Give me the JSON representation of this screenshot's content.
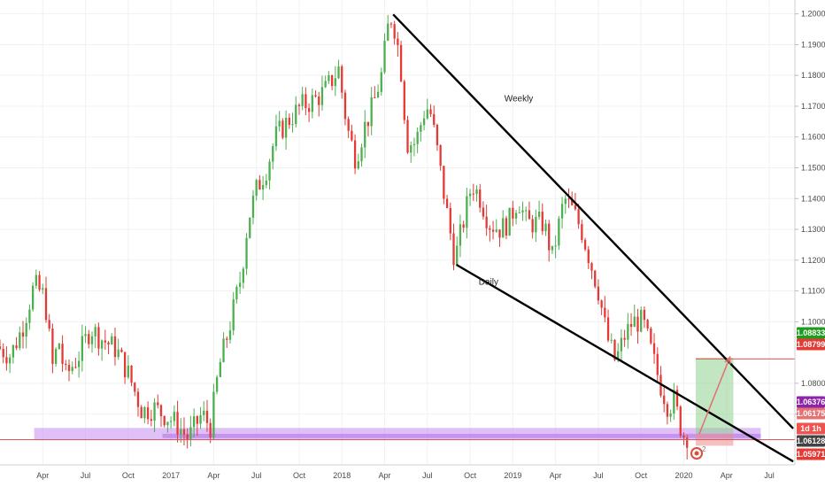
{
  "chart_data": {
    "type": "candlestick",
    "y_axis": {
      "ticks": [
        "1.20000",
        "1.19000",
        "1.18000",
        "1.17000",
        "1.16000",
        "1.15000",
        "1.14000",
        "1.13000",
        "1.12000",
        "1.11000",
        "1.10000",
        "1.08000",
        "1.07000"
      ],
      "ylim": [
        1.0535,
        1.2045
      ]
    },
    "x_axis": {
      "ticks": [
        {
          "label": "Apr",
          "t": 2016.25
        },
        {
          "label": "Jul",
          "t": 2016.5
        },
        {
          "label": "Oct",
          "t": 2016.75
        },
        {
          "label": "2017",
          "t": 2017.0
        },
        {
          "label": "Apr",
          "t": 2017.25
        },
        {
          "label": "Jul",
          "t": 2017.5
        },
        {
          "label": "Oct",
          "t": 2017.75
        },
        {
          "label": "2018",
          "t": 2018.0
        },
        {
          "label": "Apr",
          "t": 2018.25
        },
        {
          "label": "Jul",
          "t": 2018.5
        },
        {
          "label": "Oct",
          "t": 2018.75
        },
        {
          "label": "2019",
          "t": 2019.0
        },
        {
          "label": "Apr",
          "t": 2019.25
        },
        {
          "label": "Jul",
          "t": 2019.5
        },
        {
          "label": "Oct",
          "t": 2019.75
        },
        {
          "label": "2020",
          "t": 2020.0
        },
        {
          "label": "Apr",
          "t": 2020.25
        },
        {
          "label": "Jul",
          "t": 2020.5
        }
      ],
      "xlim": [
        2016.0,
        2020.65
      ]
    },
    "price_path": [
      [
        2016.0,
        1.092
      ],
      [
        2016.08,
        1.089
      ],
      [
        2016.15,
        1.098
      ],
      [
        2016.22,
        1.112
      ],
      [
        2016.28,
        1.108
      ],
      [
        2016.33,
        1.084
      ],
      [
        2016.36,
        1.095
      ],
      [
        2016.4,
        1.082
      ],
      [
        2016.48,
        1.089
      ],
      [
        2016.55,
        1.098
      ],
      [
        2016.6,
        1.095
      ],
      [
        2016.7,
        1.091
      ],
      [
        2016.77,
        1.083
      ],
      [
        2016.85,
        1.071
      ],
      [
        2016.92,
        1.072
      ],
      [
        2017.0,
        1.069
      ],
      [
        2017.05,
        1.067
      ],
      [
        2017.12,
        1.062
      ],
      [
        2017.2,
        1.07
      ],
      [
        2017.25,
        1.066
      ],
      [
        2017.3,
        1.085
      ],
      [
        2017.36,
        1.098
      ],
      [
        2017.43,
        1.115
      ],
      [
        2017.47,
        1.133
      ],
      [
        2017.52,
        1.143
      ],
      [
        2017.58,
        1.15
      ],
      [
        2017.63,
        1.16
      ],
      [
        2017.7,
        1.165
      ],
      [
        2017.78,
        1.17
      ],
      [
        2017.86,
        1.172
      ],
      [
        2017.92,
        1.175
      ],
      [
        2018.0,
        1.182
      ],
      [
        2018.05,
        1.163
      ],
      [
        2018.1,
        1.153
      ],
      [
        2018.15,
        1.163
      ],
      [
        2018.2,
        1.17
      ],
      [
        2018.25,
        1.18
      ],
      [
        2018.3,
        1.2
      ],
      [
        2018.33,
        1.195
      ],
      [
        2018.36,
        1.185
      ],
      [
        2018.4,
        1.158
      ],
      [
        2018.45,
        1.158
      ],
      [
        2018.5,
        1.168
      ],
      [
        2018.53,
        1.17
      ],
      [
        2018.57,
        1.158
      ],
      [
        2018.62,
        1.14
      ],
      [
        2018.68,
        1.12
      ],
      [
        2018.72,
        1.13
      ],
      [
        2018.78,
        1.145
      ],
      [
        2018.83,
        1.14
      ],
      [
        2018.88,
        1.132
      ],
      [
        2018.95,
        1.13
      ],
      [
        2019.0,
        1.133
      ],
      [
        2019.05,
        1.14
      ],
      [
        2019.1,
        1.132
      ],
      [
        2019.15,
        1.132
      ],
      [
        2019.2,
        1.132
      ],
      [
        2019.25,
        1.121
      ],
      [
        2019.32,
        1.14
      ],
      [
        2019.37,
        1.136
      ],
      [
        2019.42,
        1.13
      ],
      [
        2019.47,
        1.12
      ],
      [
        2019.52,
        1.11
      ],
      [
        2019.57,
        1.095
      ],
      [
        2019.62,
        1.087
      ],
      [
        2019.67,
        1.095
      ],
      [
        2019.72,
        1.1
      ],
      [
        2019.78,
        1.1
      ],
      [
        2019.82,
        1.092
      ],
      [
        2019.88,
        1.08
      ],
      [
        2019.93,
        1.072
      ],
      [
        2019.96,
        1.075
      ],
      [
        2020.0,
        1.066
      ],
      [
        2020.02,
        1.063
      ]
    ],
    "trendlines": [
      {
        "label": "Weekly",
        "from": {
          "t": 2018.3,
          "p": 1.1998
        },
        "to": {
          "t": 2020.64,
          "p": 1.0653
        }
      },
      {
        "label": "Daily",
        "from": {
          "t": 2018.67,
          "p": 1.1185
        },
        "to": {
          "t": 2020.64,
          "p": 1.0546
        }
      }
    ],
    "zones": [
      {
        "name": "support-zone",
        "color": "#c58cf0",
        "t0": 2016.2,
        "t1": 2020.45,
        "p0": 1.0615,
        "p1": 1.0655
      },
      {
        "name": "support-zone-inner",
        "color": "#b070e8",
        "t0": 2016.95,
        "t1": 2020.45,
        "p0": 1.0622,
        "p1": 1.0636
      },
      {
        "name": "profit-zone",
        "color": "#8fd08f",
        "t0": 2020.07,
        "t1": 2020.29,
        "p0": 1.0637,
        "p1": 1.0883
      },
      {
        "name": "stop-zone",
        "color": "#e89090",
        "t0": 2020.07,
        "t1": 2020.29,
        "p0": 1.0597,
        "p1": 1.0637
      }
    ],
    "hlines": [
      {
        "p": 1.0879,
        "color": "#e05555",
        "t0": 2020.07,
        "t1": 2020.65
      },
      {
        "p": 1.0617,
        "color": "#e05555",
        "t0": 2015.95,
        "t1": 2020.65
      }
    ],
    "projection_arrow": {
      "from": {
        "t": 2020.09,
        "p": 1.0635
      },
      "to": {
        "t": 2020.27,
        "p": 1.0885
      },
      "color": "#e07070"
    },
    "price_tags": [
      {
        "text": "1.08833",
        "p": 1.08833,
        "color": "#1e9c1e"
      },
      {
        "text": "1.08799",
        "p": 1.08799,
        "color": "#e53935",
        "offset": 1
      },
      {
        "text": "1.06376",
        "p": 1.06376,
        "color": "#8e24aa"
      },
      {
        "text": "1.06175",
        "p": 1.06175,
        "color": "#e57373",
        "offset": 1
      },
      {
        "text": "1d 1h",
        "p": 1.0585,
        "color": "#ef5350",
        "offset": 2
      },
      {
        "text": "1.06128",
        "p": 1.06128,
        "color": "#424242",
        "offset": 3
      },
      {
        "text": "1.05971",
        "p": 1.05971,
        "color": "#e53935",
        "offset": 4
      }
    ],
    "annotations": [
      {
        "text": "Weekly",
        "t": 2018.95,
        "p": 1.1715
      },
      {
        "text": "Daily",
        "t": 2018.8,
        "p": 1.112
      }
    ],
    "colors": {
      "bull": "#4caf50",
      "bear": "#e53935",
      "line": "#000000"
    }
  },
  "watermark_number": "2"
}
